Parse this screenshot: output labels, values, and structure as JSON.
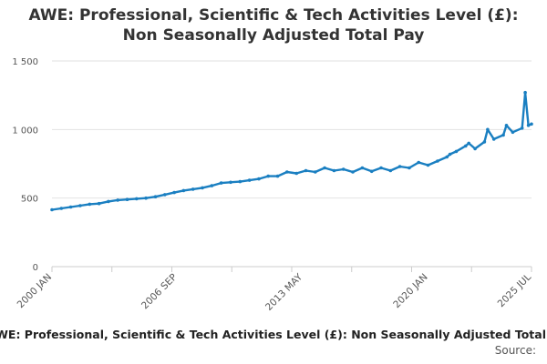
{
  "header": {
    "title_line1": "AWE: Professional, Scientific & Tech Activities Level (£):",
    "title_line2": "Non Seasonally Adjusted Total Pay"
  },
  "footer": {
    "series_title": "AWE: Professional, Scientific & Tech Activities Level (£): Non Seasonally Adjusted Total Pay",
    "source_label": "Source:"
  },
  "colors": {
    "series": "#1a7fc1",
    "grid": "#e2e2e2",
    "axis": "#cccccc"
  },
  "chart_data": {
    "type": "line",
    "title": "AWE: Professional, Scientific & Tech Activities Level (£): Non Seasonally Adjusted Total Pay",
    "xlabel": "",
    "ylabel": "",
    "x_range": [
      "2000-01",
      "2025-07"
    ],
    "ylim": [
      0,
      1500
    ],
    "y_ticks": [
      0,
      500,
      1000,
      1500
    ],
    "y_tick_labels": [
      "0",
      "500",
      "1 000",
      "1 500"
    ],
    "x_tick_labels": [
      "2000 JAN",
      "2006 SEP",
      "2013 MAY",
      "2020 JAN",
      "2025 JUL"
    ],
    "x_tick_dates": [
      "2000-01",
      "2006-09",
      "2013-05",
      "2020-01",
      "2025-07"
    ],
    "grid": true,
    "legend": "none",
    "series": [
      {
        "x": [
          "2000-01",
          "2000-07",
          "2001-01",
          "2001-07",
          "2002-01",
          "2002-07",
          "2003-01",
          "2003-07",
          "2004-01",
          "2004-07",
          "2005-01",
          "2005-07",
          "2006-01",
          "2006-07",
          "2007-01",
          "2007-07",
          "2008-01",
          "2008-07",
          "2009-01",
          "2009-07",
          "2010-01",
          "2010-07",
          "2011-01",
          "2011-07",
          "2012-01",
          "2012-07",
          "2013-01",
          "2013-07",
          "2014-01",
          "2014-07",
          "2015-01",
          "2015-07",
          "2016-01",
          "2016-07",
          "2017-01",
          "2017-07",
          "2018-01",
          "2018-07",
          "2019-01",
          "2019-07",
          "2020-01",
          "2020-07",
          "2021-01",
          "2021-03",
          "2021-07",
          "2022-01",
          "2022-03",
          "2022-07",
          "2023-01",
          "2023-03",
          "2023-07",
          "2024-01",
          "2024-03",
          "2024-07",
          "2025-01",
          "2025-03",
          "2025-05",
          "2025-07"
        ],
        "values": [
          415,
          425,
          435,
          445,
          455,
          460,
          475,
          485,
          490,
          495,
          500,
          510,
          525,
          540,
          555,
          565,
          575,
          590,
          610,
          615,
          620,
          630,
          640,
          660,
          660,
          690,
          680,
          700,
          690,
          720,
          700,
          710,
          690,
          720,
          695,
          720,
          700,
          730,
          720,
          760,
          740,
          770,
          800,
          820,
          840,
          880,
          900,
          860,
          910,
          1000,
          930,
          960,
          1030,
          980,
          1010,
          1270,
          1030,
          1040
        ]
      }
    ]
  }
}
